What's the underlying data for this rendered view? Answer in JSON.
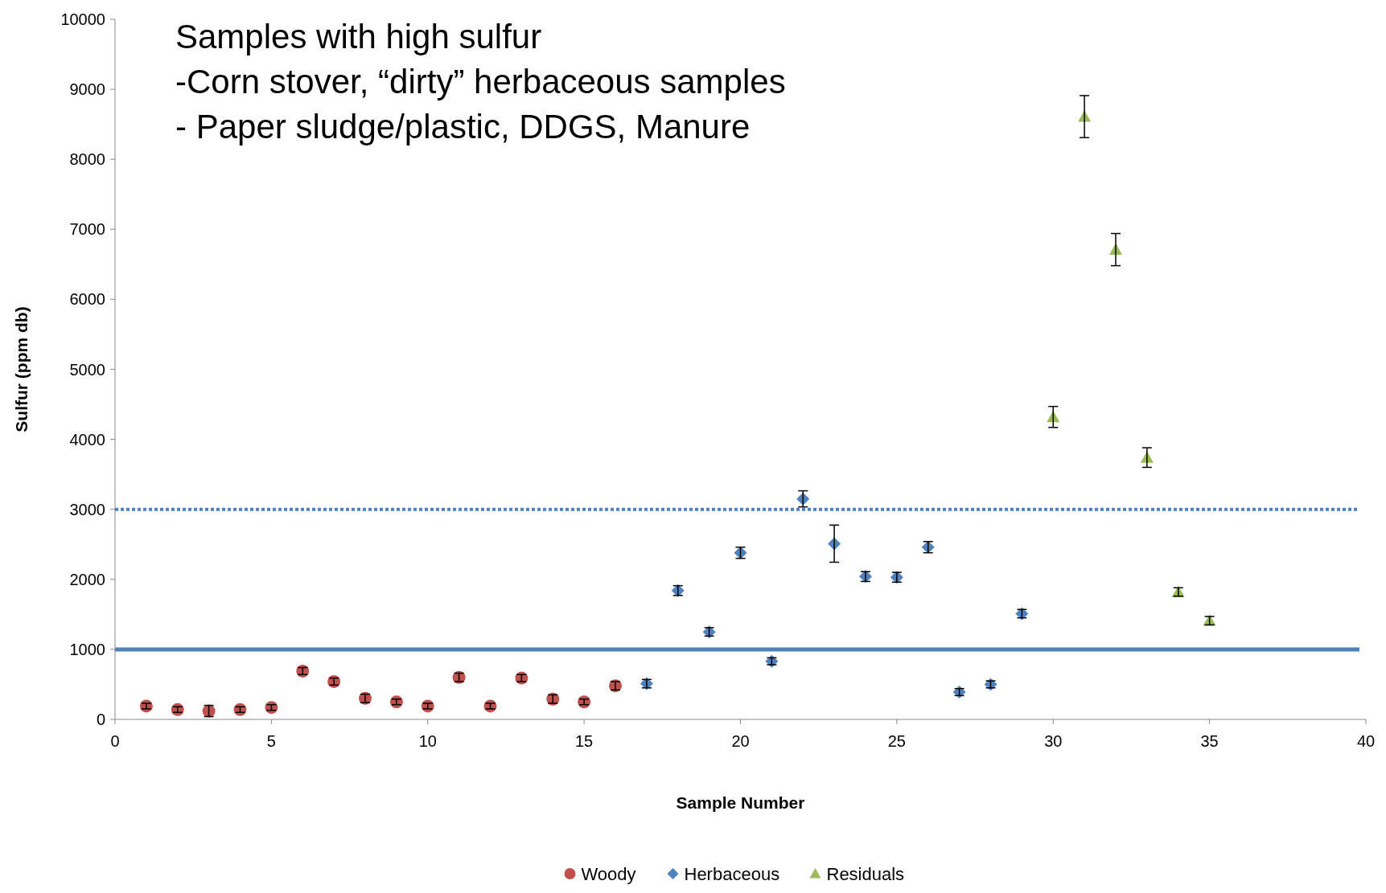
{
  "chart_data": {
    "type": "scatter",
    "title": "Samples with high sulfur",
    "annotations": [
      "-Corn stover, “dirty” herbaceous samples",
      "- Paper sludge/plastic, DDGS, Manure"
    ],
    "xlabel": "Sample Number",
    "ylabel": "Sulfur (ppm db)",
    "xlim": [
      0,
      40
    ],
    "xticks": [
      0,
      5,
      10,
      15,
      20,
      25,
      30,
      35,
      40
    ],
    "ylim": [
      0,
      10000
    ],
    "yticks": [
      0,
      1000,
      2000,
      3000,
      4000,
      5000,
      6000,
      7000,
      8000,
      9000,
      10000
    ],
    "legend": "bottom",
    "series": [
      {
        "name": "Woody",
        "color": "#c0504d",
        "marker": "circle",
        "x": [
          1,
          2,
          3,
          4,
          5,
          6,
          7,
          8,
          9,
          10,
          11,
          12,
          13,
          14,
          15,
          16
        ],
        "values": [
          190,
          140,
          120,
          140,
          170,
          690,
          540,
          300,
          250,
          190,
          600,
          190,
          590,
          290,
          250,
          480
        ],
        "errors": [
          40,
          40,
          80,
          40,
          40,
          50,
          50,
          60,
          40,
          40,
          60,
          40,
          50,
          60,
          40,
          60
        ]
      },
      {
        "name": "Herbaceous",
        "color": "#4f81bd",
        "marker": "diamond",
        "x": [
          17,
          18,
          19,
          20,
          21,
          22,
          23,
          24,
          25,
          26,
          27,
          28,
          29
        ],
        "values": [
          510,
          1840,
          1250,
          2380,
          830,
          3150,
          2510,
          2040,
          2030,
          2460,
          390,
          500,
          1510
        ],
        "errors": [
          60,
          70,
          60,
          80,
          50,
          115,
          265,
          70,
          70,
          80,
          50,
          50,
          60
        ]
      },
      {
        "name": "Residuals",
        "color": "#9bbb59",
        "marker": "triangle",
        "x": [
          30,
          31,
          32,
          33,
          34,
          35
        ],
        "values": [
          4320,
          8610,
          6710,
          3740,
          1820,
          1410
        ],
        "errors": [
          150,
          300,
          230,
          140,
          60,
          60
        ]
      }
    ],
    "ref_lines": [
      {
        "axis": "y",
        "value": 3000,
        "color": "#4f81bd",
        "line_style": "dotted"
      },
      {
        "axis": "y",
        "value": 1000,
        "color": "#4f81bd",
        "line_style": "solid"
      }
    ]
  }
}
